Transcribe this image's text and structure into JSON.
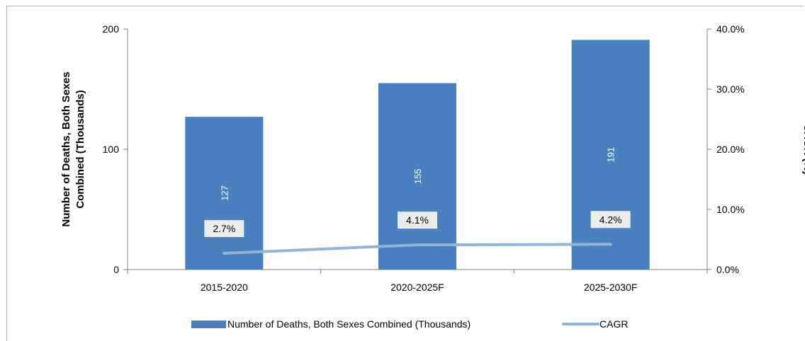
{
  "chart_data": {
    "type": "bar",
    "categories": [
      "2015-2020",
      "2020-2025F",
      "2025-2030F"
    ],
    "series": [
      {
        "name": "Number of Deaths, Both Sexes Combined (Thousands)",
        "type": "bar",
        "axis": "left",
        "values": [
          127,
          155,
          191
        ],
        "color": "#4a80c0"
      },
      {
        "name": "CAGR",
        "type": "line",
        "axis": "right",
        "values": [
          2.7,
          4.1,
          4.2
        ],
        "color": "#93b3da"
      }
    ],
    "data_labels": {
      "bars": [
        "127",
        "155",
        "191"
      ],
      "cagr": [
        "2.7%",
        "4.1%",
        "4.2%"
      ]
    },
    "ylabel": "Number of Deaths, Both Sexes Combined (Thousands)",
    "ylabel_lines": [
      "Number of Deaths, Both Sexes",
      "Combined (Thousands)"
    ],
    "ylim": [
      0,
      200
    ],
    "yticks": [
      0,
      100,
      200
    ],
    "y2label": "CAGR (%)",
    "y2lim": [
      0,
      40
    ],
    "y2ticks": [
      "0.0%",
      "10.0%",
      "20.0%",
      "30.0%",
      "40.0%"
    ],
    "legend_position": "bottom",
    "grid": false
  }
}
